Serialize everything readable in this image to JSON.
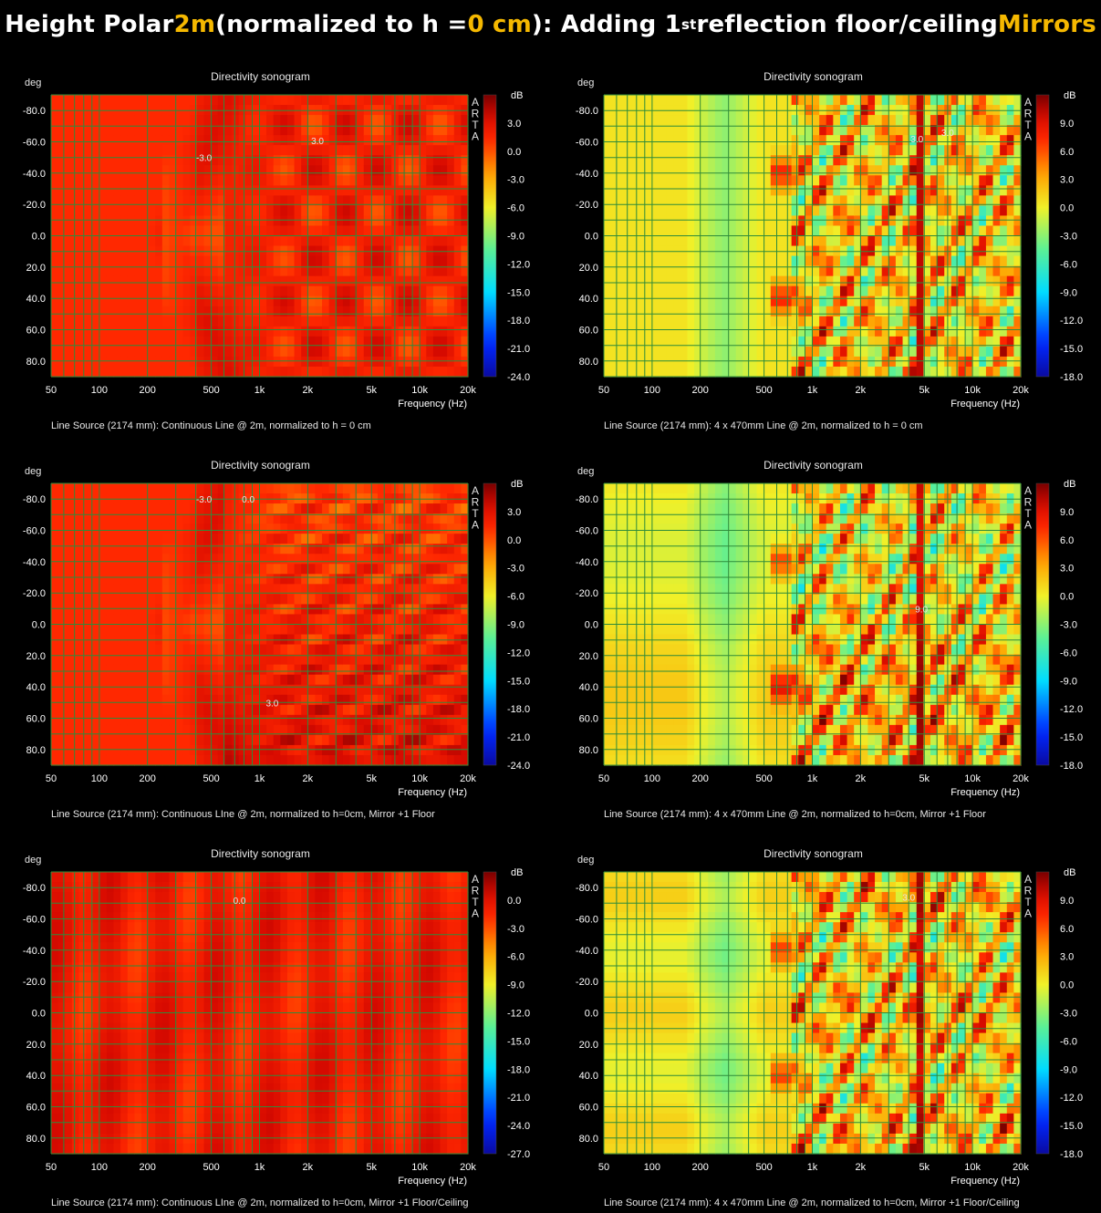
{
  "title": {
    "p1": "Height Polar ",
    "h1": "2m",
    "p2": " (normalized to h = ",
    "h2": "0 cm",
    "p3": "):  Adding 1",
    "sup": "st",
    "p4": " reflection floor/ceiling ",
    "h3": "Mirrors"
  },
  "colors": {
    "background": "#000000",
    "highlight": "#f5b800",
    "grid": "#2e8b3a",
    "chart_bg": "#000000"
  },
  "chart_data": [
    {
      "type": "heatmap",
      "title": "Directivity sonogram",
      "xlabel": "Frequency (Hz)",
      "ylabel": "deg",
      "colorbar_label": "dB",
      "watermark": "ARTA",
      "x_range": [
        50,
        20000
      ],
      "x_scale": "log",
      "x_ticks": [
        "50",
        "100",
        "200",
        "500",
        "1k",
        "2k",
        "5k",
        "10k",
        "20k"
      ],
      "y_range": [
        -90,
        90
      ],
      "y_ticks": [
        "-80.0",
        "-60.0",
        "-40.0",
        "-20.0",
        "0.0",
        "20.0",
        "40.0",
        "60.0",
        "80.0"
      ],
      "z_range": [
        -24,
        6
      ],
      "colorbar_ticks": [
        "3.0",
        "0.0",
        "-3.0",
        "-6.0",
        "-9.0",
        "-12.0",
        "-15.0",
        "-18.0",
        "-21.0",
        "-24.0"
      ],
      "contour_labels": [
        {
          "text": "-3.0",
          "freq": 450,
          "deg": -50
        },
        {
          "text": "3.0",
          "freq": 2300,
          "deg": -61
        }
      ],
      "pattern": "cont",
      "caption": "Line Source (2174 mm): Continuous Line @ 2m, normalized to h = 0 cm"
    },
    {
      "type": "heatmap",
      "title": "Directivity sonogram",
      "xlabel": "Frequency (Hz)",
      "ylabel": "deg",
      "colorbar_label": "dB",
      "watermark": "ARTA",
      "x_range": [
        50,
        20000
      ],
      "x_scale": "log",
      "x_ticks": [
        "50",
        "100",
        "200",
        "500",
        "1k",
        "2k",
        "5k",
        "10k",
        "20k"
      ],
      "y_range": [
        -90,
        90
      ],
      "y_ticks": [
        "-80.0",
        "-60.0",
        "-40.0",
        "-20.0",
        "0.0",
        "20.0",
        "40.0",
        "60.0",
        "80.0"
      ],
      "z_range": [
        -18,
        12
      ],
      "colorbar_ticks": [
        "9.0",
        "6.0",
        "3.0",
        "0.0",
        "-3.0",
        "-6.0",
        "-9.0",
        "-12.0",
        "-15.0",
        "-18.0"
      ],
      "contour_labels": [
        {
          "text": "3.0",
          "freq": 4500,
          "deg": -62
        },
        {
          "text": "3.0",
          "freq": 7000,
          "deg": -66
        }
      ],
      "pattern": "seg",
      "caption": "Line Source (2174 mm): 4 x 470mm Line @ 2m, normalized to h = 0 cm"
    },
    {
      "type": "heatmap",
      "title": "Directivity sonogram",
      "xlabel": "Frequency (Hz)",
      "ylabel": "deg",
      "colorbar_label": "dB",
      "watermark": "ARTA",
      "x_range": [
        50,
        20000
      ],
      "x_scale": "log",
      "x_ticks": [
        "50",
        "100",
        "200",
        "500",
        "1k",
        "2k",
        "5k",
        "10k",
        "20k"
      ],
      "y_range": [
        -90,
        90
      ],
      "y_ticks": [
        "-80.0",
        "-60.0",
        "-40.0",
        "-20.0",
        "0.0",
        "20.0",
        "40.0",
        "60.0",
        "80.0"
      ],
      "z_range": [
        -24,
        6
      ],
      "colorbar_ticks": [
        "3.0",
        "0.0",
        "-3.0",
        "-6.0",
        "-9.0",
        "-12.0",
        "-15.0",
        "-18.0",
        "-21.0",
        "-24.0"
      ],
      "contour_labels": [
        {
          "text": "-3.0",
          "freq": 450,
          "deg": -80
        },
        {
          "text": "0.0",
          "freq": 850,
          "deg": -80
        },
        {
          "text": "3.0",
          "freq": 1200,
          "deg": 50
        }
      ],
      "pattern": "contFloor",
      "caption": "Line Source (2174 mm): Continuous LIne @ 2m, normalized to h=0cm, Mirror +1 Floor"
    },
    {
      "type": "heatmap",
      "title": "Directivity sonogram",
      "xlabel": "Frequency (Hz)",
      "ylabel": "deg",
      "colorbar_label": "dB",
      "watermark": "ARTA",
      "x_range": [
        50,
        20000
      ],
      "x_scale": "log",
      "x_ticks": [
        "50",
        "100",
        "200",
        "500",
        "1k",
        "2k",
        "5k",
        "10k",
        "20k"
      ],
      "y_range": [
        -90,
        90
      ],
      "y_ticks": [
        "-80.0",
        "-60.0",
        "-40.0",
        "-20.0",
        "0.0",
        "20.0",
        "40.0",
        "60.0",
        "80.0"
      ],
      "z_range": [
        -18,
        12
      ],
      "colorbar_ticks": [
        "9.0",
        "6.0",
        "3.0",
        "0.0",
        "-3.0",
        "-6.0",
        "-9.0",
        "-12.0",
        "-15.0",
        "-18.0"
      ],
      "contour_labels": [
        {
          "text": "9.0",
          "freq": 4800,
          "deg": -10
        }
      ],
      "pattern": "segFloor",
      "caption": "Line Source (2174 mm): 4 x 470mm Line @ 2m, normalized to h=0cm, Mirror +1 Floor"
    },
    {
      "type": "heatmap",
      "title": "Directivity sonogram",
      "xlabel": "Frequency (Hz)",
      "ylabel": "deg",
      "colorbar_label": "dB",
      "watermark": "ARTA",
      "x_range": [
        50,
        20000
      ],
      "x_scale": "log",
      "x_ticks": [
        "50",
        "100",
        "200",
        "500",
        "1k",
        "2k",
        "5k",
        "10k",
        "20k"
      ],
      "y_range": [
        -90,
        90
      ],
      "y_ticks": [
        "-80.0",
        "-60.0",
        "-40.0",
        "-20.0",
        "0.0",
        "20.0",
        "40.0",
        "60.0",
        "80.0"
      ],
      "z_range": [
        -27,
        3
      ],
      "colorbar_ticks": [
        "0.0",
        "-3.0",
        "-6.0",
        "-9.0",
        "-12.0",
        "-15.0",
        "-18.0",
        "-21.0",
        "-24.0",
        "-27.0"
      ],
      "contour_labels": [
        {
          "text": "0.0",
          "freq": 750,
          "deg": -72
        }
      ],
      "pattern": "contFC",
      "caption": "Line Source (2174 mm): Continuous LIne @ 2m, normalized to h=0cm, Mirror +1 Floor/Ceiling"
    },
    {
      "type": "heatmap",
      "title": "Directivity sonogram",
      "xlabel": "Frequency (Hz)",
      "ylabel": "deg",
      "colorbar_label": "dB",
      "watermark": "ARTA",
      "x_range": [
        50,
        20000
      ],
      "x_scale": "log",
      "x_ticks": [
        "50",
        "100",
        "200",
        "500",
        "1k",
        "2k",
        "5k",
        "10k",
        "20k"
      ],
      "y_range": [
        -90,
        90
      ],
      "y_ticks": [
        "-80.0",
        "-60.0",
        "-40.0",
        "-20.0",
        "0.0",
        "20.0",
        "40.0",
        "60.0",
        "80.0"
      ],
      "z_range": [
        -18,
        12
      ],
      "colorbar_ticks": [
        "9.0",
        "6.0",
        "3.0",
        "0.0",
        "-3.0",
        "-6.0",
        "-9.0",
        "-12.0",
        "-15.0",
        "-18.0"
      ],
      "contour_labels": [
        {
          "text": "3.0",
          "freq": 4000,
          "deg": -74
        }
      ],
      "pattern": "segFC",
      "caption": "Line Source (2174 mm): 4 x 470mm Line @ 2m, normalized to h=0cm, Mirror +1 Floor/Ceiling"
    }
  ]
}
